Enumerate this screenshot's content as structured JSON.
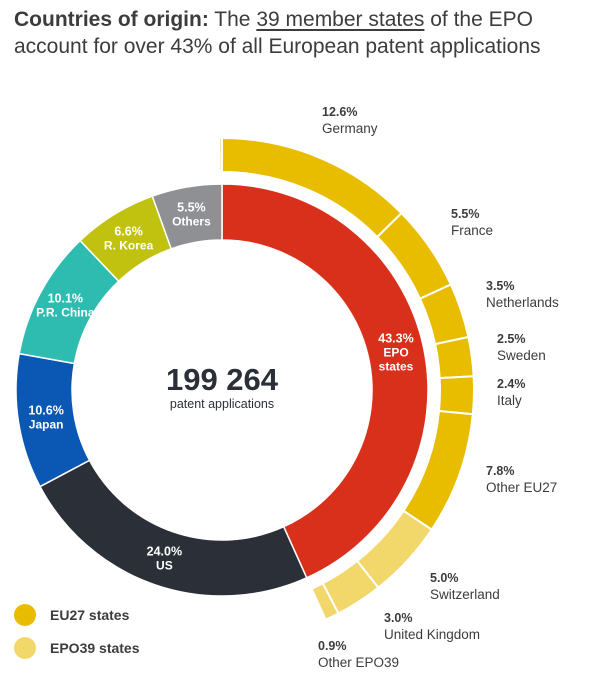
{
  "header": {
    "title_bold": "Countries of origin:",
    "title_pre": "The",
    "title_link": "39 member states",
    "title_post": "of the EPO account for over 43% of all European patent applications"
  },
  "center": {
    "total": "199 264",
    "label": "patent applications"
  },
  "legend": [
    {
      "label": "EU27 states",
      "color": "#e8bd00"
    },
    {
      "label": "EPO39 states",
      "color": "#f2d76a"
    }
  ],
  "colors": {
    "epo": "#d9301b",
    "us": "#2b2f38",
    "japan": "#0a58b4",
    "china": "#2fbcb0",
    "korea": "#c1c20f",
    "others": "#8e9093",
    "eu27": "#e8bd00",
    "epo39": "#f2d76a"
  },
  "chart_data": {
    "type": "pie",
    "inner_ring": [
      {
        "pct": "43.3%",
        "lines": [
          "EPO",
          "states"
        ],
        "value": 43.3,
        "color_key": "epo"
      },
      {
        "pct": "24.0%",
        "lines": [
          "US"
        ],
        "value": 24.0,
        "color_key": "us"
      },
      {
        "pct": "10.6%",
        "lines": [
          "Japan"
        ],
        "value": 10.6,
        "color_key": "japan"
      },
      {
        "pct": "10.1%",
        "lines": [
          "P.R. China"
        ],
        "value": 10.1,
        "color_key": "china"
      },
      {
        "pct": "6.6%",
        "lines": [
          "R. Korea"
        ],
        "value": 6.6,
        "color_key": "korea"
      },
      {
        "pct": "5.5%",
        "lines": [
          "Others"
        ],
        "value": 5.5,
        "color_key": "others"
      }
    ],
    "outer_ring": [
      {
        "pct": "12.6%",
        "name": "Germany",
        "value": 12.6,
        "group": "eu27"
      },
      {
        "pct": "5.5%",
        "name": "France",
        "value": 5.5,
        "group": "eu27"
      },
      {
        "pct": "3.5%",
        "name": "Netherlands",
        "value": 3.5,
        "group": "eu27"
      },
      {
        "pct": "2.5%",
        "name": "Sweden",
        "value": 2.5,
        "group": "eu27"
      },
      {
        "pct": "2.4%",
        "name": "Italy",
        "value": 2.4,
        "group": "eu27"
      },
      {
        "pct": "7.8%",
        "name": "Other EU27",
        "value": 7.8,
        "group": "eu27"
      },
      {
        "pct": "5.0%",
        "name": "Switzerland",
        "value": 5.0,
        "group": "epo39"
      },
      {
        "pct": "3.0%",
        "name": "United Kingdom",
        "value": 3.0,
        "group": "epo39"
      },
      {
        "pct": "0.9%",
        "name": "Other EPO39",
        "value": 0.9,
        "group": "epo39"
      }
    ]
  }
}
